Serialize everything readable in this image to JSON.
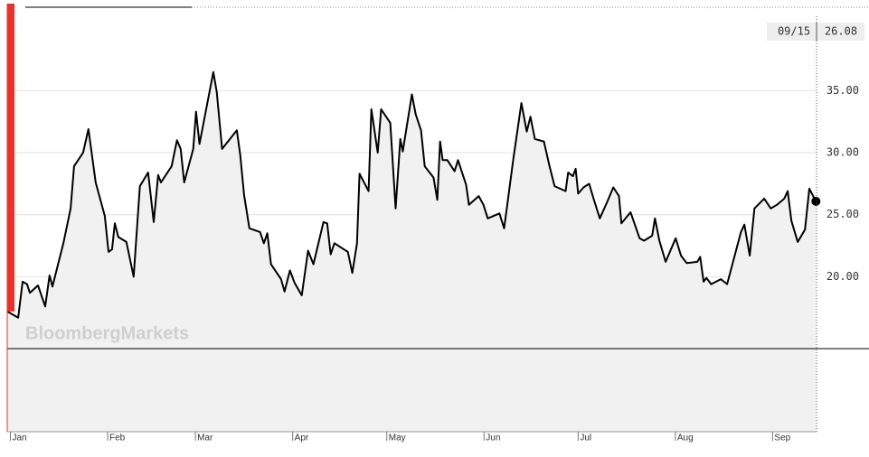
{
  "chart_data": {
    "type": "line",
    "watermark": "BloombergMarkets",
    "series": [
      {
        "color": "#000000",
        "x": [
          0,
          3.5,
          4.9,
          6.3,
          7.2,
          9.8,
          12.1,
          13.5,
          14.4,
          17.9,
          20.2,
          21.3,
          24.2,
          25.9,
          28.2,
          31.1,
          32.3,
          33.4,
          34.3,
          35.4,
          38.0,
          40.3,
          42.3,
          44.9,
          46.7,
          48.1,
          49.0,
          52.4,
          54.1,
          55.3,
          56.4,
          59.3,
          60.2,
          61.3,
          65.7,
          66.8,
          68.5,
          73.2,
          74.3,
          75.5,
          77.2,
          80.6,
          81.8,
          82.9,
          84.1,
          87.3,
          88.4,
          90.1,
          91.6,
          93.9,
          95.9,
          97.6,
          100.8,
          102.0,
          103.1,
          104.3,
          108.6,
          110.0,
          111.5,
          112.3,
          115.2,
          116.1,
          118.1,
          119.2,
          122.1,
          123.8,
          125.3,
          126.1,
          129.0,
          130.2,
          131.9,
          133.1,
          135.9,
          137.1,
          138.0,
          138.8,
          140.3,
          142.6,
          143.7,
          146.3,
          147.2,
          150.3,
          151.8,
          153.2,
          156.9,
          158.4,
          159.6,
          161.3,
          163.9,
          165.6,
          166.8,
          168.2,
          171.1,
          172.8,
          174.5,
          178.0,
          178.8,
          180.3,
          181.2,
          182.0,
          183.7,
          185.5,
          186.9,
          188.9,
          191.2,
          193.2,
          195.0,
          195.8,
          198.7,
          201.6,
          203.0,
          205.6,
          206.5,
          207.9,
          209.9,
          213.1,
          214.8,
          216.6,
          220.0,
          220.9,
          222.0,
          222.9,
          224.4,
          227.5,
          229.5,
          233.9,
          235.0,
          236.7,
          238.2,
          241.3,
          243.4,
          245.4,
          247.7,
          248.8,
          250.0,
          252.0,
          254.3,
          255.7,
          257.8
        ],
        "values": [
          17.2,
          16.7,
          19.6,
          19.4,
          18.7,
          19.3,
          17.6,
          20.1,
          19.2,
          22.7,
          25.5,
          28.9,
          30.0,
          31.9,
          27.6,
          24.9,
          22.0,
          22.2,
          24.3,
          23.2,
          22.8,
          20.0,
          27.3,
          28.4,
          24.4,
          28.2,
          27.6,
          28.9,
          31.0,
          30.3,
          27.6,
          30.3,
          33.3,
          30.7,
          36.5,
          34.9,
          30.3,
          31.8,
          29.8,
          26.6,
          23.9,
          23.6,
          22.7,
          23.5,
          21.0,
          19.8,
          18.8,
          20.5,
          19.5,
          18.5,
          22.1,
          21.0,
          24.4,
          24.3,
          21.8,
          22.7,
          22.0,
          20.3,
          22.7,
          28.3,
          26.9,
          33.5,
          30.0,
          33.5,
          32.4,
          25.5,
          31.1,
          30.1,
          34.7,
          33.1,
          31.8,
          28.9,
          28.0,
          26.2,
          30.9,
          29.4,
          29.4,
          28.5,
          29.4,
          27.4,
          25.8,
          26.5,
          25.8,
          24.7,
          25.1,
          23.9,
          26.2,
          29.4,
          34.0,
          31.7,
          32.9,
          31.1,
          30.9,
          29.0,
          27.3,
          26.9,
          28.4,
          28.1,
          28.7,
          26.7,
          27.2,
          27.5,
          26.3,
          24.7,
          26.0,
          27.2,
          26.5,
          24.3,
          25.2,
          23.1,
          22.9,
          23.3,
          24.7,
          22.9,
          21.2,
          23.1,
          21.7,
          21.1,
          21.2,
          21.6,
          19.6,
          19.9,
          19.4,
          19.8,
          19.4,
          23.6,
          24.2,
          21.7,
          25.5,
          26.3,
          25.5,
          25.8,
          26.3,
          26.9,
          24.5,
          22.8,
          23.8,
          27.1,
          26.08
        ]
      }
    ],
    "last_label": {
      "date": "09/15",
      "value": 26.08
    },
    "xlim": [
      0,
      258
    ],
    "xticks": [
      {
        "value": 1,
        "label": "Jan"
      },
      {
        "value": 32,
        "label": "Feb"
      },
      {
        "value": 60,
        "label": "Mar"
      },
      {
        "value": 91,
        "label": "Apr"
      },
      {
        "value": 121,
        "label": "May"
      },
      {
        "value": 152,
        "label": "Jun"
      },
      {
        "value": 182,
        "label": "Jul"
      },
      {
        "value": 213,
        "label": "Aug"
      },
      {
        "value": 244,
        "label": "Sep"
      }
    ],
    "ylim": [
      7.5,
      41
    ],
    "yticks": [
      {
        "value": 20,
        "label": "20.00"
      },
      {
        "value": 25,
        "label": "25.00"
      },
      {
        "value": 30,
        "label": "30.00"
      },
      {
        "value": 35,
        "label": "35.00"
      }
    ],
    "grid": true
  }
}
